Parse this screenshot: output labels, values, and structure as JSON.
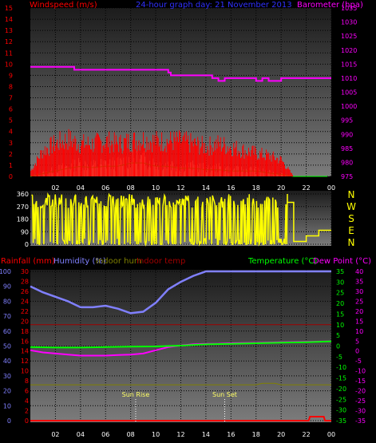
{
  "colors": {
    "windspeed": "#ff0000",
    "gust": "#ff0000",
    "avgwind": "#ccffcc",
    "barometer": "#ff00ff",
    "direction": "#ffff00",
    "rain": "#ff0000",
    "humidity": "#8080ff",
    "indoor_hum": "#808000",
    "indoor_temp": "#a00000",
    "temperature": "#00ff00",
    "dewpoint": "#ff00ff",
    "header_blue": "#3030ff"
  },
  "chart_data": [
    {
      "type": "line",
      "title": "24-hour graph day: 21 November 2013",
      "left_axis_label": "Windspeed (m/s)",
      "right_axis_label": "Barometer (hpa)",
      "left_ylim": [
        0,
        15
      ],
      "right_ylim": [
        975,
        1035
      ],
      "left_ticks": [
        "0",
        "1",
        "2",
        "3",
        "4",
        "5",
        "6",
        "7",
        "8",
        "9",
        "10",
        "11",
        "12",
        "13",
        "14",
        "15"
      ],
      "right_ticks": [
        "975",
        "980",
        "985",
        "990",
        "995",
        "1000",
        "1005",
        "1010",
        "1015",
        "1020",
        "1025",
        "1030",
        "1035"
      ],
      "x_ticks": [
        "02",
        "04",
        "06",
        "08",
        "10",
        "12",
        "14",
        "16",
        "18",
        "20",
        "22",
        "00"
      ],
      "grid": true,
      "series": [
        {
          "name": "Barometer (hpa)",
          "axis": "right",
          "x": [
            0,
            3,
            3.5,
            6,
            7,
            10,
            11,
            11.2,
            14,
            14.5,
            15,
            15.5,
            16,
            17,
            18,
            18.5,
            19,
            20,
            21,
            24
          ],
          "values": [
            1014,
            1014,
            1013,
            1013,
            1013,
            1013,
            1012,
            1011,
            1011,
            1010,
            1009,
            1010,
            1010,
            1010,
            1009,
            1010,
            1009,
            1010,
            1010,
            1010
          ]
        },
        {
          "name": "Gust",
          "axis": "left",
          "x": [
            0,
            1,
            2,
            3,
            4,
            5,
            6,
            7,
            8,
            9,
            10,
            11,
            12,
            13,
            14,
            15,
            16,
            17,
            18,
            19,
            20,
            21,
            22,
            23,
            24
          ],
          "values": [
            0.5,
            2.8,
            3.5,
            4,
            3.5,
            3.5,
            3.8,
            3.5,
            3.8,
            4,
            3.8,
            3.8,
            3.8,
            3.5,
            3.2,
            3.5,
            3.2,
            2.8,
            2.5,
            2.2,
            1.8,
            0,
            0,
            0,
            0
          ]
        },
        {
          "name": "Avg wind",
          "axis": "left",
          "x": [
            0,
            2,
            3,
            4,
            5,
            6,
            7,
            8,
            9,
            10,
            11,
            12,
            13,
            14,
            15,
            16,
            17,
            18,
            19,
            20,
            21,
            24
          ],
          "values": [
            0,
            0.8,
            1.2,
            1.5,
            1.3,
            1.5,
            1.5,
            2,
            2,
            1.5,
            1.5,
            1.2,
            1.2,
            1,
            1,
            0.8,
            0.8,
            0.8,
            0.5,
            0.3,
            0,
            0
          ]
        }
      ]
    },
    {
      "type": "line",
      "axis_label": "Wind direction",
      "ylim": [
        0,
        360
      ],
      "y_ticks": [
        "0",
        "90",
        "180",
        "270",
        "360"
      ],
      "compass": [
        "N",
        "W",
        "S",
        "E",
        "N"
      ],
      "series": [
        {
          "name": "Wind direction",
          "x": [
            0,
            20.5,
            21,
            21.5,
            22,
            22.5,
            23,
            24
          ],
          "values": [
            360,
            300,
            20,
            20,
            60,
            60,
            100,
            100
          ]
        }
      ]
    },
    {
      "type": "line",
      "legend": [
        "Rainfall (mm)",
        "Humidity (%)",
        "Indoor hum",
        "Indoor temp",
        "Temperature (°C)",
        "Dew Point (°C)"
      ],
      "humidity_ticks": [
        "0",
        "10",
        "20",
        "30",
        "40",
        "50",
        "60",
        "70",
        "80",
        "90",
        "100"
      ],
      "rain_ticks": [
        "0",
        "2",
        "4",
        "6",
        "8",
        "10",
        "12",
        "14",
        "16",
        "18",
        "20",
        "22",
        "24",
        "26",
        "28",
        "30"
      ],
      "temp_ticks": [
        "35",
        "30",
        "25",
        "20",
        "15",
        "10",
        "5",
        "0",
        "-5",
        "-10",
        "-15",
        "-20",
        "-25",
        "-30",
        "-35"
      ],
      "temp_ticks_2": [
        "40",
        "35",
        "30",
        "25",
        "20",
        "15",
        "10",
        "5",
        "0",
        "-5",
        "-10",
        "-15",
        "-20",
        "-25",
        "-30",
        "-35"
      ],
      "temp_ylim": [
        -35,
        35
      ],
      "x_ticks": [
        "02",
        "04",
        "06",
        "08",
        "10",
        "12",
        "14",
        "16",
        "18",
        "20",
        "22",
        "00"
      ],
      "sun_rise_label": "Sun Rise",
      "sun_set_label": "Sun Set",
      "sun_rise_x": 8.4,
      "sun_set_x": 15.5,
      "series": [
        {
          "name": "Humidity (%)",
          "axis": "humidity",
          "x": [
            0,
            1,
            2,
            3,
            4,
            5,
            6,
            7,
            8,
            9,
            10,
            11,
            12,
            13,
            14,
            15,
            16,
            17,
            18,
            19,
            20,
            21,
            22,
            23,
            24
          ],
          "values": [
            90,
            86,
            83,
            80,
            76,
            76,
            77,
            75,
            72,
            73,
            79,
            88,
            93,
            97,
            100,
            100,
            100,
            100,
            100,
            100,
            100,
            100,
            100,
            100,
            100
          ]
        },
        {
          "name": "Temperature (°C)",
          "axis": "temp",
          "x": [
            0,
            2,
            4,
            6,
            8,
            10,
            12,
            14,
            16,
            18,
            20,
            22,
            24
          ],
          "values": [
            -0.5,
            -0.7,
            -0.7,
            -0.5,
            -0.3,
            -0.2,
            0.2,
            0.8,
            1,
            1.3,
            1.6,
            1.8,
            2.2
          ]
        },
        {
          "name": "Dew Point (°C)",
          "axis": "temp",
          "x": [
            0,
            1,
            2,
            3,
            4,
            5,
            6,
            7,
            8,
            9,
            10,
            11,
            12,
            13,
            14,
            15,
            16,
            18,
            20,
            22,
            24
          ],
          "values": [
            -2,
            -3,
            -3.5,
            -4,
            -4.5,
            -4.5,
            -4.5,
            -4.2,
            -4,
            -3.5,
            -2,
            -0.5,
            0.3,
            0.8,
            1,
            1.1,
            1.3,
            1.5,
            1.8,
            2,
            2.2
          ]
        },
        {
          "name": "Indoor temp",
          "axis": "temp",
          "x": [
            0,
            24
          ],
          "values": [
            10,
            10
          ]
        },
        {
          "name": "Indoor hum",
          "axis": "humidity",
          "x": [
            0,
            18,
            18.5,
            19.5,
            20,
            24
          ],
          "values": [
            24,
            24,
            25,
            25,
            24,
            24
          ]
        },
        {
          "name": "Rainfall (mm)",
          "axis": "rain",
          "x": [
            0,
            22.2,
            22.3,
            23.4,
            23.5,
            24
          ],
          "values": [
            0,
            0,
            0.8,
            0.8,
            0,
            0
          ]
        }
      ]
    }
  ]
}
